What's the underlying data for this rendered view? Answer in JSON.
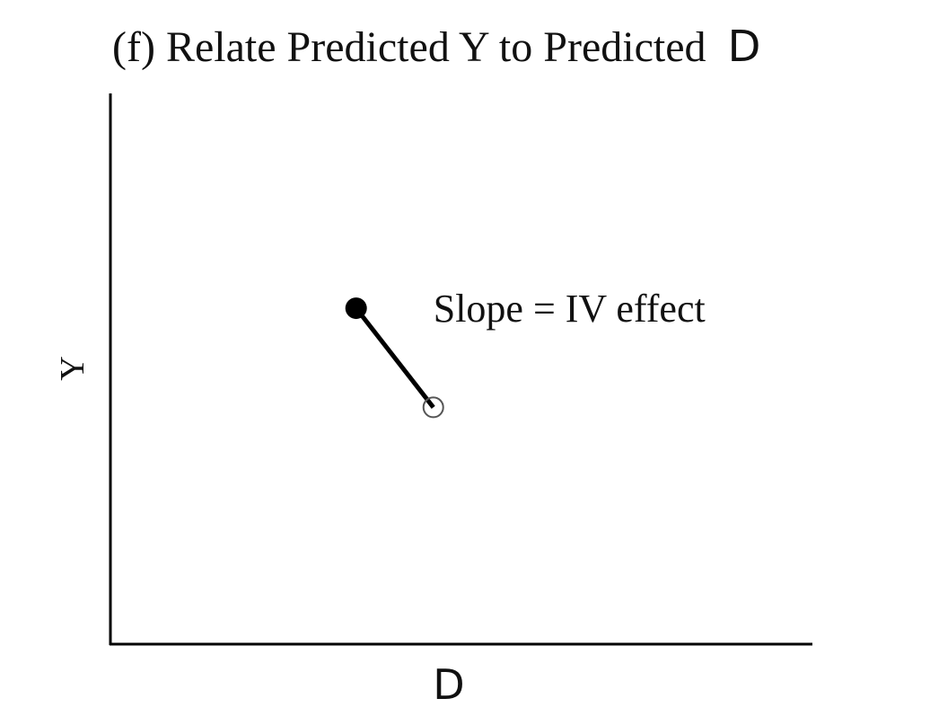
{
  "chart_data": {
    "type": "scatter",
    "title": {
      "prefix": "(f) Relate Predicted Y to Predicted",
      "suffix": "D"
    },
    "xlabel": "D",
    "ylabel": "Y",
    "xlim": [
      0,
      10
    ],
    "ylim": [
      0,
      10
    ],
    "grid": false,
    "legend": "none",
    "points": [
      {
        "x": 3.5,
        "y": 6.1,
        "style": "filled"
      },
      {
        "x": 4.6,
        "y": 4.3,
        "style": "open"
      }
    ],
    "segment": {
      "from": 0,
      "to": 1
    },
    "annotation": {
      "text": "Slope = IV effect",
      "x": 4.6,
      "y": 6.1
    },
    "colors": {
      "ink": "#000000",
      "open_point_stroke": "#555555"
    }
  }
}
